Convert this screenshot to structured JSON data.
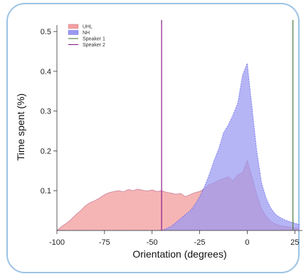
{
  "chart_data": {
    "type": "area",
    "title": "",
    "xlabel": "Orientation (degrees)",
    "ylabel": "Time spent (%)",
    "xlim": [
      -100,
      29
    ],
    "ylim": [
      0,
      0.52
    ],
    "xticks": [
      -100,
      -75,
      -50,
      -25,
      0,
      25
    ],
    "xtick_labels": [
      "-100",
      "-75",
      "-50",
      "-25",
      "0",
      "25"
    ],
    "yticks": [
      0.1,
      0.2,
      0.3,
      0.4,
      0.5
    ],
    "ytick_labels": [
      "0.1",
      "0.2",
      "0.3",
      "0.4",
      "0.5"
    ],
    "grid": false,
    "legend_position": "top-left",
    "x": [
      -100,
      -97.5,
      -95,
      -92.5,
      -90,
      -87.5,
      -85,
      -82.5,
      -80,
      -77.5,
      -75,
      -72.5,
      -70,
      -67.5,
      -65,
      -62.5,
      -60,
      -57.5,
      -55,
      -52.5,
      -50,
      -47.5,
      -45,
      -42.5,
      -40,
      -37.5,
      -35,
      -32.5,
      -30,
      -27.5,
      -25,
      -22.5,
      -20,
      -17.5,
      -15,
      -12.5,
      -10,
      -7.5,
      -5,
      -2.5,
      0,
      2.5,
      5,
      7.5,
      10,
      12.5,
      15,
      17.5,
      20,
      22.5,
      25,
      27.5
    ],
    "series": [
      {
        "name": "UHL",
        "color": "#f4a0a0",
        "values": [
          0.0,
          0.01,
          0.018,
          0.028,
          0.04,
          0.05,
          0.062,
          0.07,
          0.075,
          0.082,
          0.09,
          0.095,
          0.098,
          0.1,
          0.097,
          0.103,
          0.1,
          0.104,
          0.101,
          0.099,
          0.102,
          0.098,
          0.1,
          0.096,
          0.094,
          0.091,
          0.093,
          0.085,
          0.09,
          0.095,
          0.098,
          0.105,
          0.115,
          0.12,
          0.126,
          0.13,
          0.135,
          0.125,
          0.14,
          0.145,
          0.175,
          0.135,
          0.09,
          0.055,
          0.035,
          0.022,
          0.016,
          0.012,
          0.01,
          0.008,
          0.006,
          0.005
        ]
      },
      {
        "name": "NH",
        "color": "#9999f2",
        "values": [
          0.0,
          0.0,
          0.0,
          0.0,
          0.0,
          0.0,
          0.0,
          0.0,
          0.0,
          0.0,
          0.0,
          0.0,
          0.0,
          0.0,
          0.0,
          0.0,
          0.0,
          0.0,
          0.0,
          0.0,
          0.0,
          0.0,
          0.0,
          0.005,
          0.01,
          0.02,
          0.03,
          0.04,
          0.05,
          0.065,
          0.085,
          0.11,
          0.14,
          0.175,
          0.205,
          0.245,
          0.265,
          0.29,
          0.32,
          0.39,
          0.42,
          0.31,
          0.2,
          0.12,
          0.08,
          0.055,
          0.04,
          0.032,
          0.026,
          0.022,
          0.018,
          0.015
        ]
      },
      {
        "name": "Speaker 1",
        "color": "#4f7f3f",
        "type": "vline",
        "x_value": 24
      },
      {
        "name": "Speaker 2",
        "color": "#8b1d8b",
        "type": "vline",
        "x_value": -45
      }
    ]
  }
}
